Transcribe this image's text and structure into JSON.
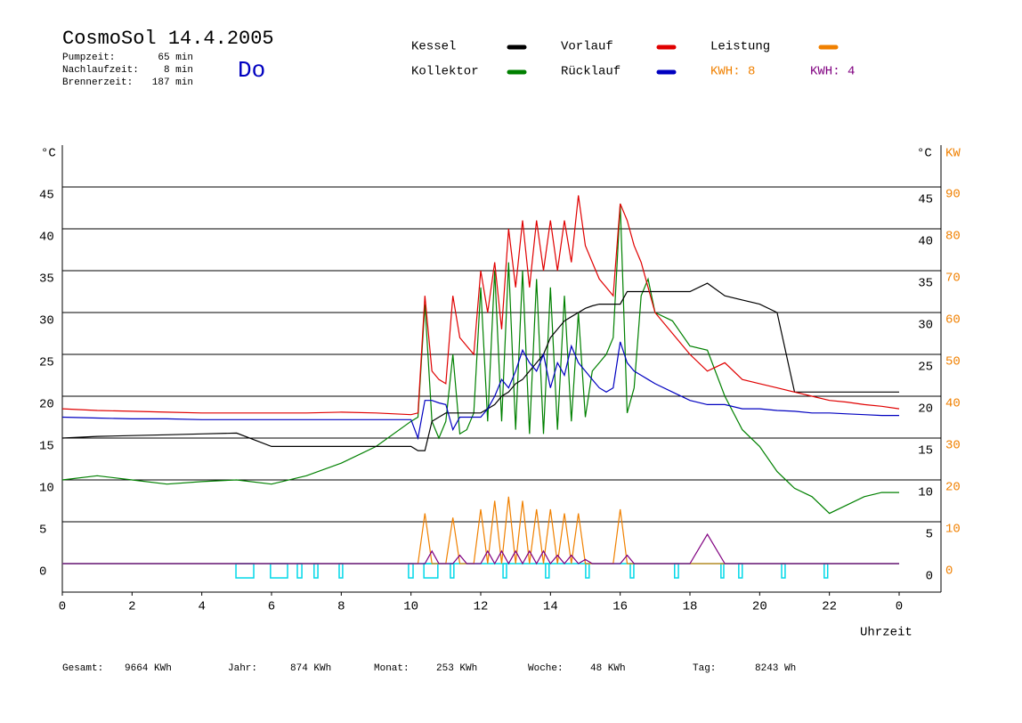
{
  "chart_data": {
    "type": "line",
    "title": "CosmoSol 14.4.2005",
    "day": "Do",
    "info": [
      [
        "Pumpzeit:",
        "65 min"
      ],
      [
        "Nachlaufzeit:",
        "8 min"
      ],
      [
        "Brennerzeit:",
        "187 min"
      ]
    ],
    "footer": [
      [
        "Gesamt:",
        "9664 KWh"
      ],
      [
        "Jahr:",
        "874 KWh"
      ],
      [
        "Monat:",
        "253 KWh"
      ],
      [
        "Woche:",
        "48 KWh"
      ],
      [
        "Tag:",
        "8243 Wh"
      ]
    ],
    "y_label": "°C",
    "y2_label": "KW",
    "x_label": "Uhrzeit",
    "xlim": [
      0,
      25.2
    ],
    "xticks": [
      0,
      2,
      4,
      6,
      8,
      10,
      12,
      14,
      16,
      18,
      20,
      22,
      {
        "value": 24,
        "label": "0"
      }
    ],
    "ylim": [
      -3.4,
      50
    ],
    "yticks": [
      0,
      5,
      10,
      15,
      20,
      25,
      30,
      35,
      40,
      45
    ],
    "y2lim": [
      -6.8,
      100
    ],
    "y2ticks": [
      0,
      10,
      20,
      30,
      40,
      50,
      60,
      70,
      80,
      90
    ],
    "grid": true,
    "x": [
      0,
      1,
      2,
      3,
      4,
      5,
      6,
      7,
      8,
      9,
      10,
      10.2,
      10.4,
      10.6,
      10.8,
      11,
      11.2,
      11.4,
      11.6,
      11.8,
      12,
      12.2,
      12.4,
      12.6,
      12.8,
      13,
      13.2,
      13.4,
      13.6,
      13.8,
      14,
      14.2,
      14.4,
      14.6,
      14.8,
      15,
      15.2,
      15.4,
      15.6,
      15.8,
      16,
      16.2,
      16.4,
      16.6,
      16.8,
      17,
      17.5,
      18,
      18.5,
      19,
      19.5,
      20,
      20.5,
      21,
      21.5,
      22,
      22.5,
      23,
      23.5,
      24
    ],
    "series": [
      {
        "name": "Kessel",
        "color": "#000000",
        "values": [
          15,
          15.2,
          15.3,
          15.4,
          15.5,
          15.6,
          14,
          14,
          14,
          14,
          14,
          13.5,
          13.5,
          17,
          17.5,
          18,
          18,
          18,
          18,
          18,
          18,
          18.5,
          19,
          20,
          20.5,
          21.5,
          22,
          23,
          24,
          25,
          27,
          28,
          29,
          29.5,
          30,
          30.5,
          30.8,
          31,
          31,
          31,
          31,
          32.5,
          32.5,
          32.5,
          32.5,
          32.5,
          32.5,
          32.5,
          33.5,
          32,
          31.5,
          31,
          30,
          20.5,
          20.5,
          20.5,
          20.5,
          20.5,
          20.5,
          20.5
        ]
      },
      {
        "name": "Kollektor",
        "color": "#008000",
        "values": [
          10,
          10.5,
          10,
          9.5,
          9.8,
          10,
          9.5,
          10.5,
          12,
          14,
          17,
          17.5,
          31,
          17,
          15,
          17,
          25,
          15.5,
          16,
          18,
          33,
          17,
          35,
          17,
          36,
          16,
          35,
          15.5,
          34,
          15.5,
          33,
          16,
          32,
          17,
          30,
          17.5,
          23,
          24,
          25,
          27,
          43,
          18,
          21,
          32,
          34,
          30,
          29,
          26,
          25.5,
          20,
          16,
          14,
          11,
          9,
          8,
          6,
          7,
          8,
          8.5,
          8.5
        ]
      },
      {
        "name": "Vorlauf",
        "color": "#e00000",
        "values": [
          18.5,
          18.3,
          18.2,
          18.1,
          18,
          18,
          18,
          18,
          18.1,
          18,
          17.8,
          18,
          32,
          23,
          22,
          21.5,
          32,
          27,
          26,
          25,
          35,
          30,
          36,
          28,
          40,
          33,
          41,
          33,
          41,
          35,
          41,
          35,
          41,
          36,
          44,
          38,
          36,
          34,
          33,
          32,
          43,
          41,
          38,
          36,
          33,
          30,
          27.5,
          25,
          23,
          24,
          22,
          21.5,
          21,
          20.5,
          20,
          19.5,
          19.3,
          19,
          18.8,
          18.5
        ]
      },
      {
        "name": "Rücklauf",
        "color": "#0000c0",
        "values": [
          17.5,
          17.4,
          17.3,
          17.3,
          17.2,
          17.2,
          17.2,
          17.2,
          17.2,
          17.2,
          17.2,
          15,
          19.5,
          19.5,
          19.2,
          19,
          16,
          17.5,
          17.5,
          17.5,
          17.5,
          18.5,
          20,
          22,
          21,
          23,
          25.5,
          24,
          23,
          25,
          21,
          24,
          22.5,
          26,
          24,
          23,
          22,
          21,
          20.5,
          21,
          26.5,
          24,
          23,
          22.5,
          22,
          21.5,
          20.5,
          19.5,
          19,
          19,
          18.5,
          18.5,
          18.3,
          18.2,
          18,
          18,
          17.9,
          17.8,
          17.7,
          17.7
        ]
      },
      {
        "name": "Leistung",
        "kwh_label": "KWH: 8",
        "color": "#f08000",
        "axis": "y2",
        "values": [
          0,
          0,
          0,
          0,
          0,
          0,
          0,
          0,
          0,
          0,
          0,
          0,
          12,
          0,
          0,
          0,
          11,
          0,
          0,
          0,
          13,
          0,
          15,
          0,
          16,
          0,
          15,
          0,
          13,
          0,
          13,
          0,
          12,
          0,
          12,
          0,
          0,
          0,
          0,
          0,
          13,
          0,
          0,
          0,
          0,
          0,
          0,
          0,
          0,
          0,
          0,
          0,
          0,
          0,
          0,
          0,
          0,
          0,
          0,
          0
        ]
      },
      {
        "name": "KWH: 4",
        "color": "#800080",
        "axis": "y2",
        "values": [
          0,
          0,
          0,
          0,
          0,
          0,
          0,
          0,
          0,
          0,
          0,
          0,
          0,
          3,
          0,
          0,
          0,
          2,
          0,
          0,
          0,
          3,
          0,
          3,
          0,
          3,
          0,
          3,
          0,
          3,
          0,
          2,
          0,
          2,
          0,
          1,
          0,
          0,
          0,
          0,
          0,
          2,
          0,
          0,
          0,
          0,
          0,
          0,
          7,
          0,
          0,
          0,
          0,
          0,
          0,
          0,
          0,
          0,
          0,
          0
        ]
      }
    ],
    "pump": {
      "color": "#00d8e8",
      "intervals": [
        [
          4.98,
          5.49
        ],
        [
          5.97,
          6.46
        ],
        [
          6.74,
          6.87
        ],
        [
          7.22,
          7.33
        ],
        [
          7.94,
          8.04
        ],
        [
          9.93,
          10.06
        ],
        [
          10.37,
          10.77
        ],
        [
          11.13,
          11.23
        ],
        [
          12.64,
          12.74
        ],
        [
          13.86,
          13.96
        ],
        [
          15.01,
          15.11
        ],
        [
          16.29,
          16.39
        ],
        [
          17.56,
          17.67
        ],
        [
          18.89,
          18.97
        ],
        [
          19.4,
          19.5
        ],
        [
          20.63,
          20.73
        ],
        [
          21.85,
          21.95
        ]
      ]
    }
  }
}
